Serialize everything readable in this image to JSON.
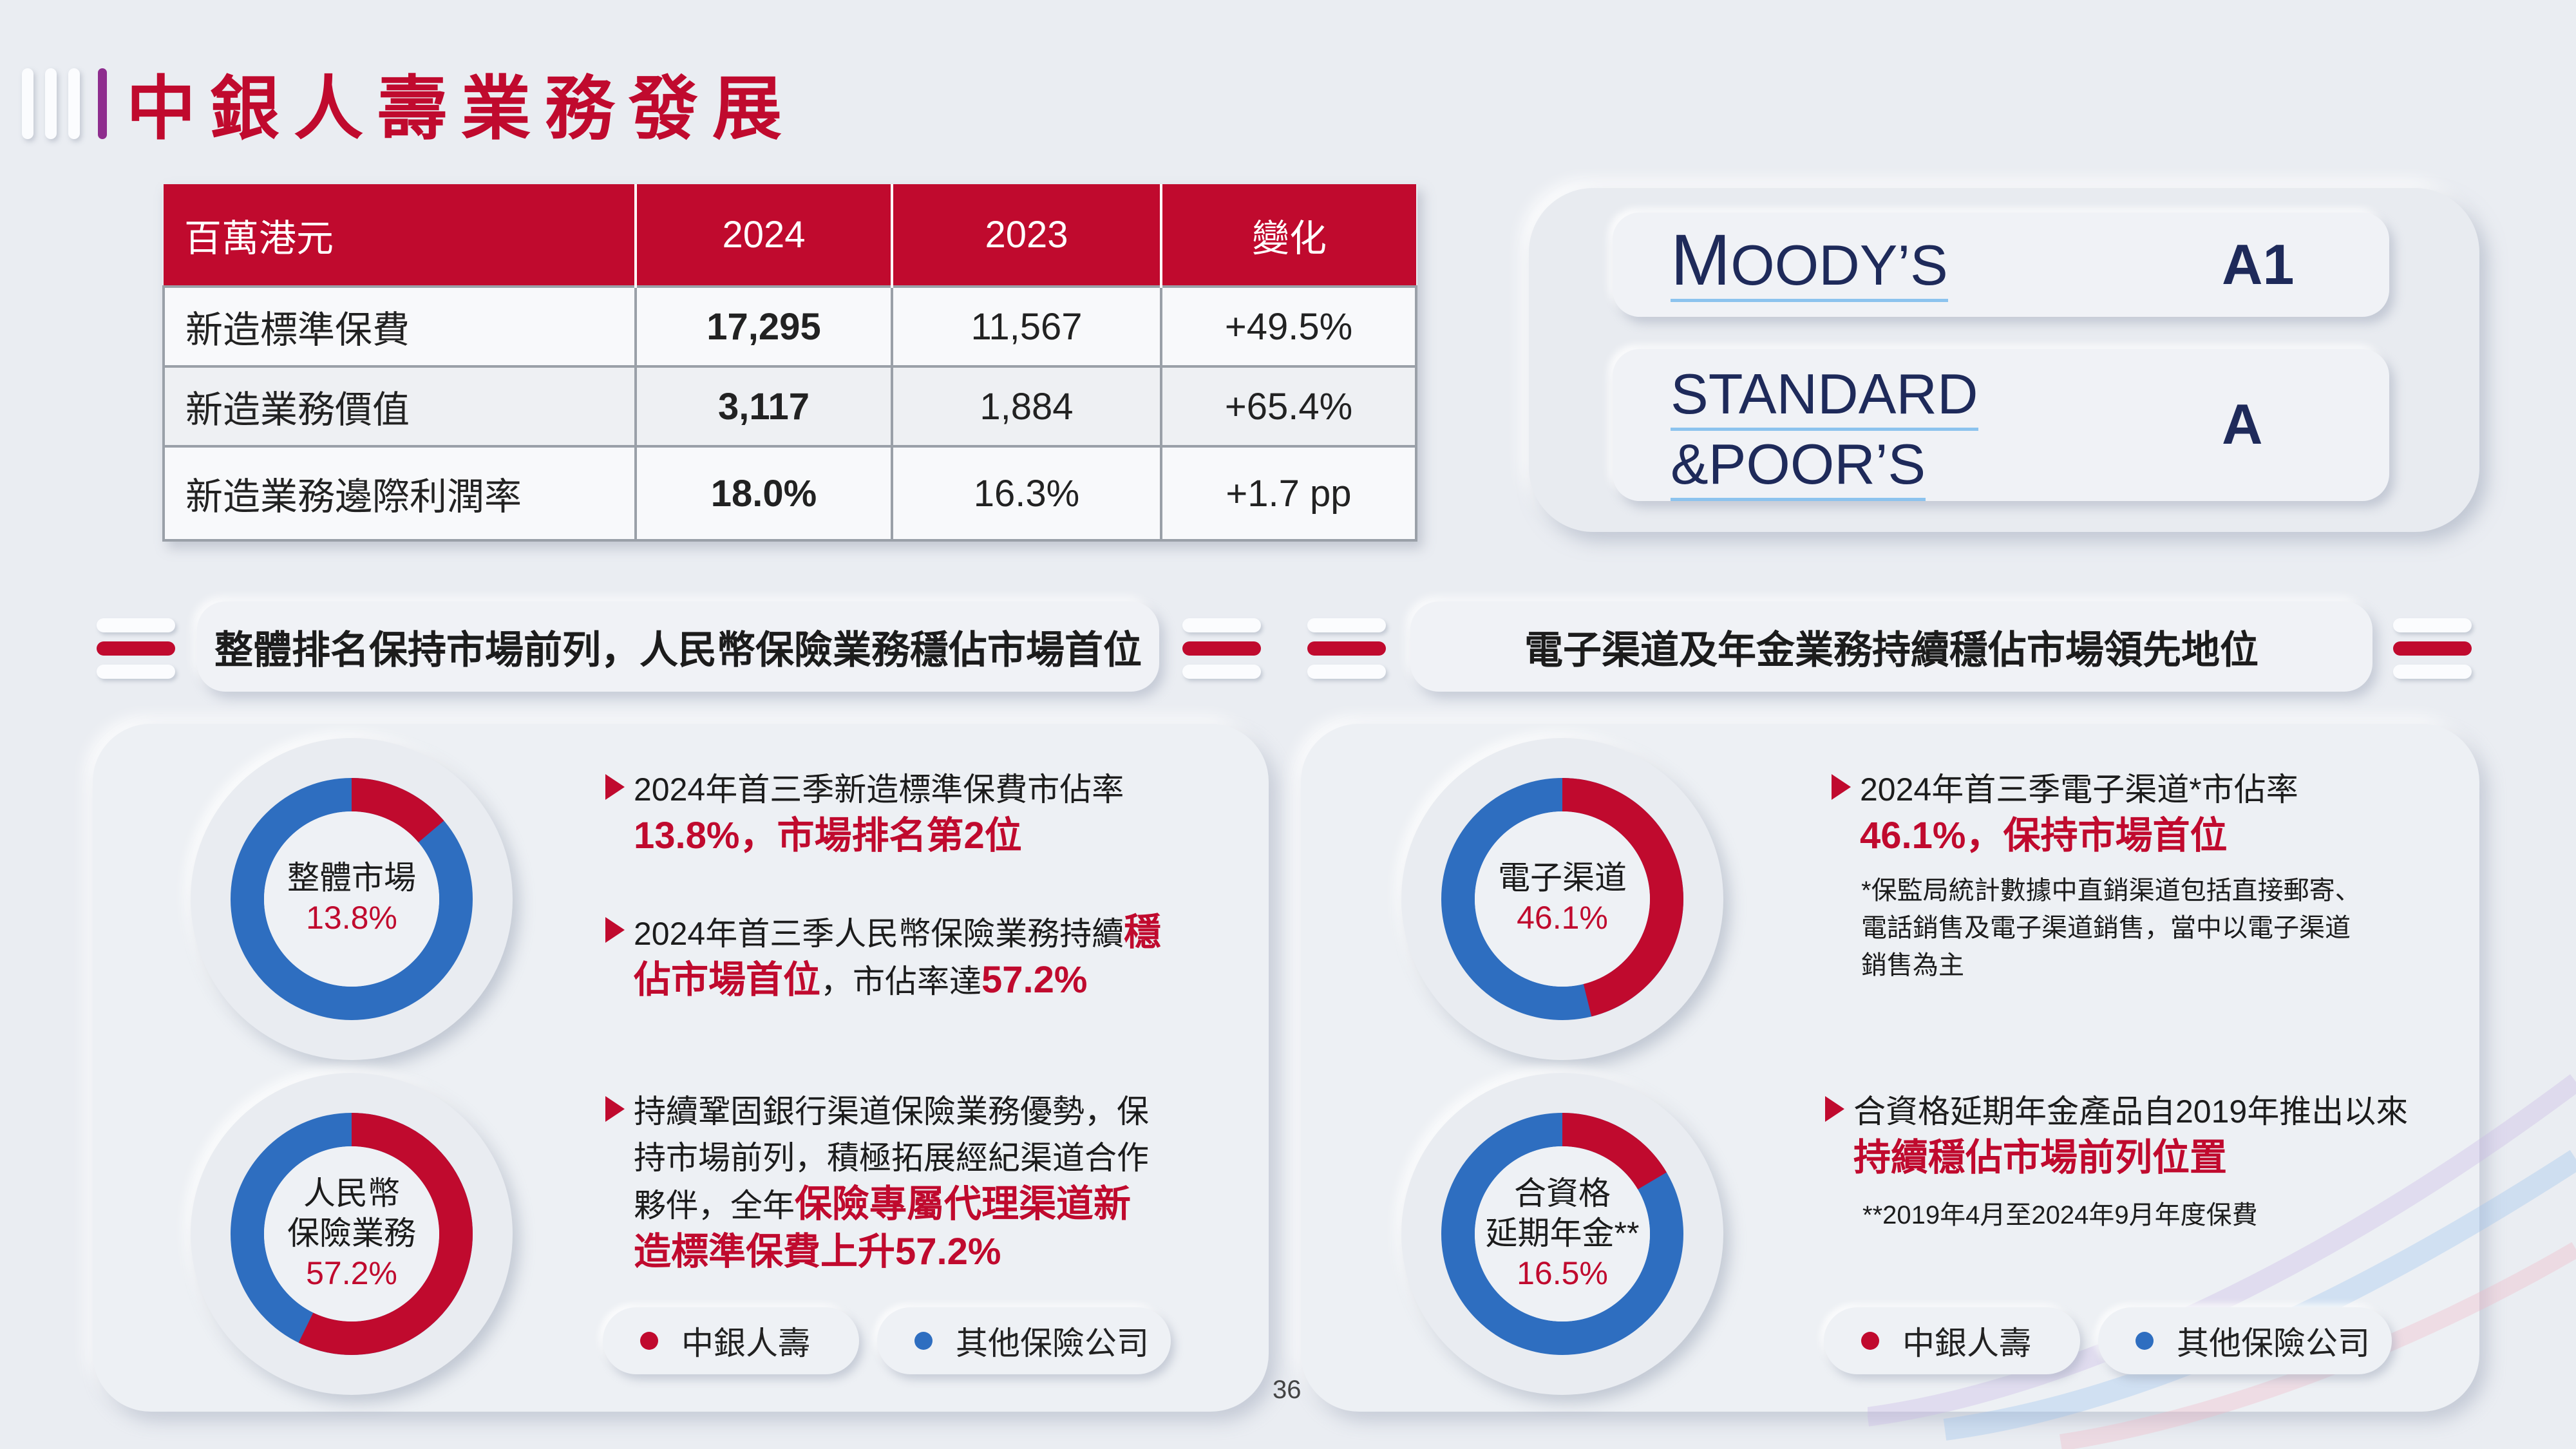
{
  "header": {
    "title": "中銀人壽業務發展"
  },
  "table": {
    "headers": [
      "百萬港元",
      "2024",
      "2023",
      "變化"
    ],
    "rows": [
      [
        "新造標準保費",
        "17,295",
        "11,567",
        "+49.5%"
      ],
      [
        "新造業務價值",
        "3,117",
        "1,884",
        "+65.4%"
      ],
      [
        "新造業務邊際利潤率",
        "18.0%",
        "16.3%",
        "+1.7 pp"
      ]
    ]
  },
  "ratings": {
    "moodys": {
      "name_first": "M",
      "name_rest": "OODY’S",
      "value": "A1"
    },
    "sp": {
      "name_line1": "STANDARD",
      "name_line2": "&POOR’S",
      "value": "A"
    }
  },
  "left_section": {
    "heading": "整體排名保持市場前列，人民幣保險業務穩佔市場首位",
    "donut1": {
      "label": "整體市場",
      "value_text": "13.8%",
      "share": 0.138
    },
    "donut2": {
      "label1": "人民幣",
      "label2": "保險業務",
      "value_text": "57.2%",
      "share": 0.572
    },
    "bullet1": {
      "line1": "2024年首三季新造標準保費市佔率",
      "highlight": "13.8%，市場排名第2位"
    },
    "bullet2": {
      "line1a": "2024年首三季人民幣保險業務持續",
      "hl1": "穩",
      "hl2": "佔市場首位",
      "mid": "，市佔率達",
      "hl3": "57.2%"
    },
    "bullet3": {
      "line1": "持續鞏固銀行渠道保險業務優勢，保",
      "line2": "持市場前列，積極拓展經紀渠道合作",
      "line3a": "夥伴，全年",
      "hl1": "保險專屬代理渠道新",
      "hl2": "造標準保費上升57.2%"
    }
  },
  "right_section": {
    "heading": "電子渠道及年金業務持續穩佔市場領先地位",
    "donut1": {
      "label": "電子渠道",
      "value_text": "46.1%",
      "share": 0.461
    },
    "donut2": {
      "label1": "合資格",
      "label2": "延期年金**",
      "value_text": "16.5%",
      "share": 0.165
    },
    "bullet1": {
      "line1": "2024年首三季電子渠道*市佔率",
      "highlight": "46.1%，保持市場首位"
    },
    "note1": {
      "line1": "*保監局統計數據中直銷渠道包括直接郵寄、",
      "line2": "電話銷售及電子渠道銷售，當中以電子渠道",
      "line3": "銷售為主"
    },
    "bullet2": {
      "line1": "合資格延期年金產品自2019年推出以來",
      "highlight": "持續穩佔市場前列位置"
    },
    "note2": "**2019年4月至2024年9月年度保費"
  },
  "legend": {
    "boc_life": "中銀人壽",
    "others": "其他保險公司"
  },
  "colors": {
    "boc_red": "#c00a2e",
    "other_blue": "#2e6ec0"
  },
  "page_number": "36"
}
